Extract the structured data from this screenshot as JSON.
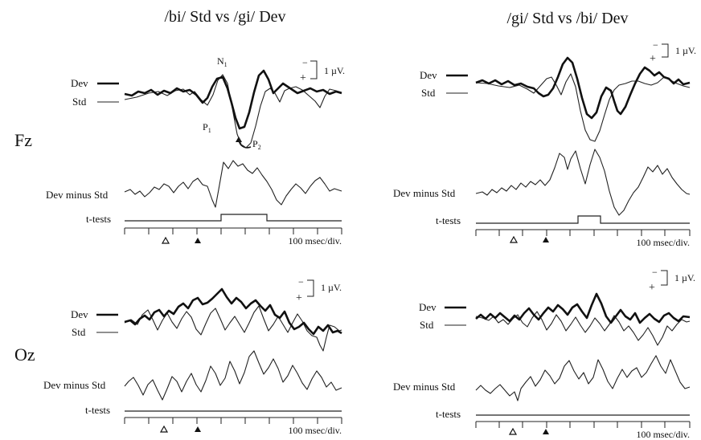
{
  "columns": [
    {
      "title": "/bi/ Std vs /gi/ Dev"
    },
    {
      "title": "/gi/ Std vs /bi/ Dev"
    }
  ],
  "rows": [
    {
      "label": "Fz"
    },
    {
      "label": "Oz"
    }
  ],
  "labels": {
    "dev": "Dev",
    "std": "Std",
    "dev_minus_std": "Dev minus Std",
    "t_tests": "t-tests",
    "time_scale": "100 msec/div.",
    "amplitude_scale": "1 µV.",
    "scale_minus": "−",
    "scale_plus": "+"
  },
  "peak_labels": {
    "n1": "N",
    "n1_sub": "1",
    "p1": "P",
    "p1_sub": "1",
    "p2": "P",
    "p2_sub": "2"
  },
  "colors": {
    "ink": "#111111",
    "background": "#ffffff"
  },
  "chart_data": [
    {
      "type": "line",
      "column": 0,
      "electrode": "Fz",
      "series": [
        {
          "name": "Dev"
        },
        {
          "name": "Std"
        },
        {
          "name": "Dev minus Std"
        },
        {
          "name": "t-tests"
        }
      ]
    },
    {
      "type": "line",
      "column": 1,
      "electrode": "Fz",
      "series": [
        {
          "name": "Dev"
        },
        {
          "name": "Std"
        },
        {
          "name": "Dev minus Std"
        },
        {
          "name": "t-tests"
        }
      ]
    },
    {
      "type": "line",
      "column": 0,
      "electrode": "Oz",
      "series": [
        {
          "name": "Dev"
        },
        {
          "name": "Std"
        },
        {
          "name": "Dev minus Std"
        },
        {
          "name": "t-tests"
        }
      ]
    },
    {
      "type": "line",
      "column": 1,
      "electrode": "Oz",
      "series": [
        {
          "name": "Dev"
        },
        {
          "name": "Std"
        },
        {
          "name": "Dev minus Std"
        },
        {
          "name": "t-tests"
        }
      ]
    }
  ]
}
